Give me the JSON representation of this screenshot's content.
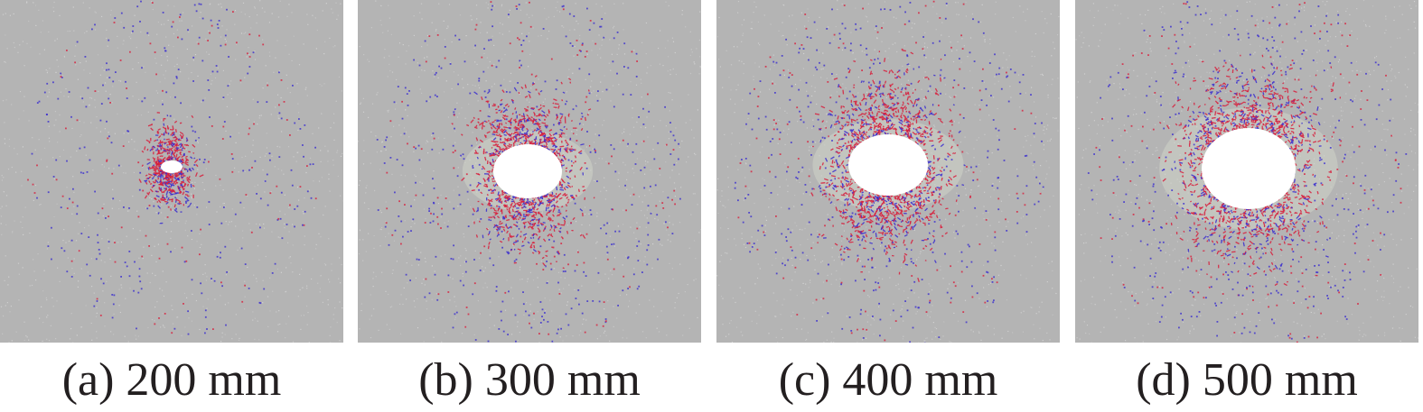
{
  "colors": {
    "background": "#b4b4b4",
    "speckle": "#d6d6d6",
    "crack_tensile": "#d81e3c",
    "crack_shear": "#3a2dcf",
    "cavity": "#ffffff"
  },
  "panels": [
    {
      "id": "a",
      "caption": "(a) 200 mm"
    },
    {
      "id": "b",
      "caption": "(b) 300 mm"
    },
    {
      "id": "c",
      "caption": "(c) 400 mm"
    },
    {
      "id": "d",
      "caption": "(d) 500 mm"
    }
  ]
}
